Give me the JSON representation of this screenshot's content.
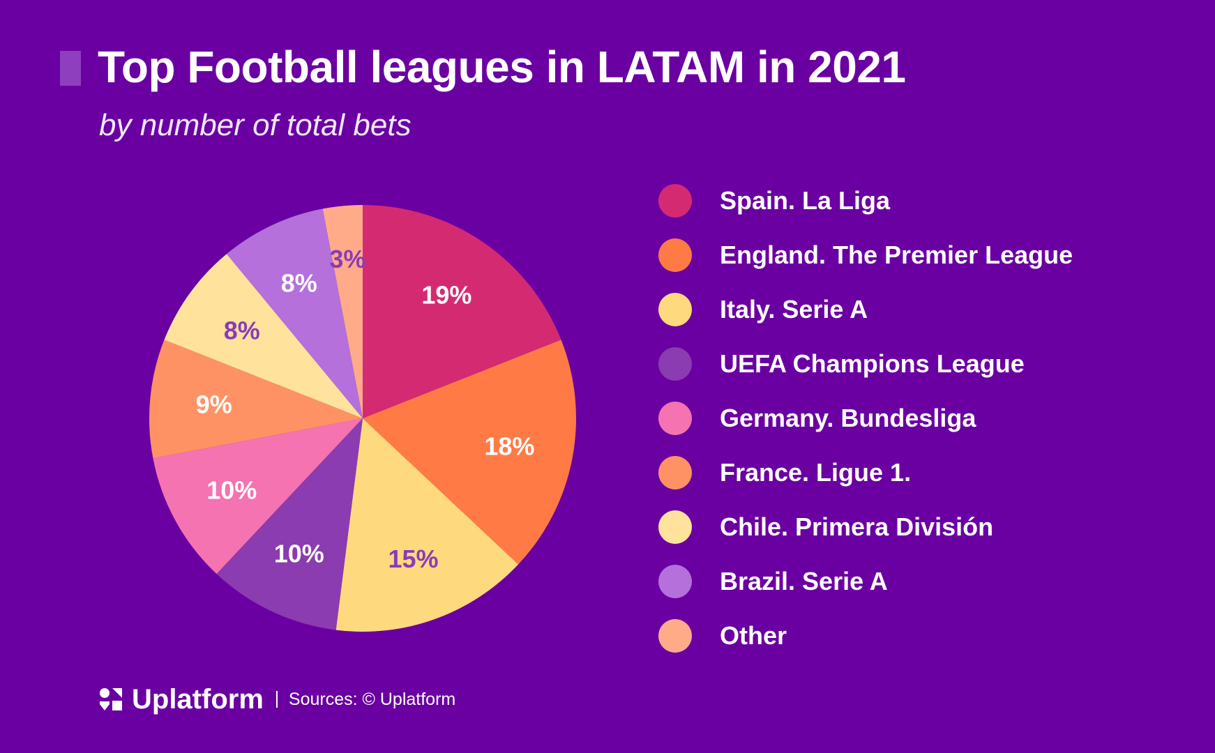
{
  "header": {
    "title": "Top Football leagues in LATAM in 2021",
    "subtitle": "by number of total bets"
  },
  "footer": {
    "brand": "Uplatform",
    "source": "Sources: © Uplatform",
    "logo_icon": "uplatform-logo-icon"
  },
  "chart_data": {
    "type": "pie",
    "title": "Top Football leagues in LATAM in 2021",
    "subtitle": "by number of total bets",
    "legend_position": "right",
    "slices": [
      {
        "label": "Spain. La Liga",
        "value": 19,
        "display": "19%",
        "color": "#d42a72",
        "text_color": "#ffffff"
      },
      {
        "label": "England. The Premier League",
        "value": 18,
        "display": "18%",
        "color": "#ff7a45",
        "text_color": "#ffffff"
      },
      {
        "label": "Italy. Serie A",
        "value": 15,
        "display": "15%",
        "color": "#ffd97d",
        "text_color": "#8a3cb8"
      },
      {
        "label": "UEFA Champions League",
        "value": 10,
        "display": "10%",
        "color": "#8a3cb0",
        "text_color": "#ffffff"
      },
      {
        "label": "Germany. Bundesliga",
        "value": 10,
        "display": "10%",
        "color": "#f473b0",
        "text_color": "#ffffff"
      },
      {
        "label": "France. Ligue 1.",
        "value": 9,
        "display": "9%",
        "color": "#ff9264",
        "text_color": "#ffffff"
      },
      {
        "label": "Chile. Primera División",
        "value": 8,
        "display": "8%",
        "color": "#ffe39c",
        "text_color": "#8a3cb8"
      },
      {
        "label": "Brazil. Serie A",
        "value": 8,
        "display": "8%",
        "color": "#b570db",
        "text_color": "#ffffff"
      },
      {
        "label": "Other",
        "value": 3,
        "display": "3%",
        "color": "#ffab8a",
        "text_color": "#8a3cb8"
      }
    ]
  }
}
